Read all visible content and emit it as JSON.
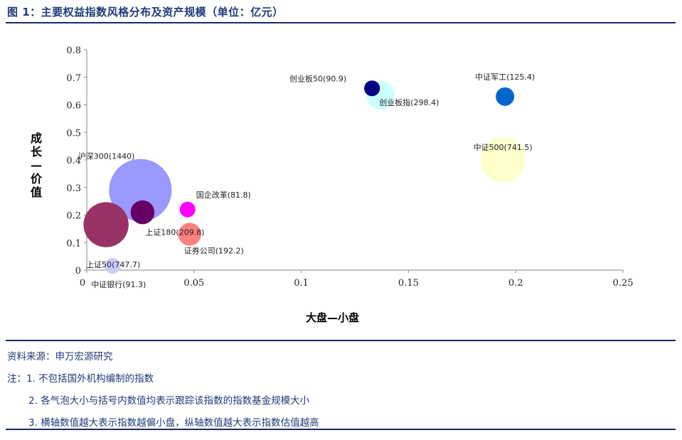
{
  "figure_title": "图 1：主要权益指数风格分布及资产规模（单位：亿元）",
  "source": "资料来源：申万宏源研究",
  "notes": [
    "注：1. 不包括国外机构编制的指数",
    "2. 各气泡大小与括号内数值均表示跟踪该指数的指数基金规模大小",
    "3. 横轴数值越大表示指数越偏小盘，纵轴数值越大表示指数估值越高"
  ],
  "chart_data": {
    "type": "scatter",
    "title": "",
    "xlabel": "大盘—小盘",
    "ylabel": "成长—价值",
    "xlim": [
      0,
      0.25
    ],
    "ylim": [
      0,
      0.8
    ],
    "x_ticks": [
      "0",
      "0.05",
      "0.1",
      "0.15",
      "0.2",
      "0.25"
    ],
    "y_ticks": [
      "0",
      "0.1",
      "0.2",
      "0.3",
      "0.4",
      "0.5",
      "0.6",
      "0.7",
      "0.8"
    ],
    "grid": false,
    "points": [
      {
        "label": "沪深300(1440)",
        "x": 0.025,
        "y": 0.29,
        "size": 1440,
        "color": "#9999ff"
      },
      {
        "label": "中证500(741.5)",
        "x": 0.194,
        "y": 0.4,
        "size": 741.5,
        "color": "#ffffcc"
      },
      {
        "label": "上证50(747.7)",
        "x": 0.009,
        "y": 0.165,
        "size": 747.7,
        "color": "#993366"
      },
      {
        "label": "创业板指(298.4)",
        "x": 0.137,
        "y": 0.635,
        "size": 298.4,
        "color": "#ccffff"
      },
      {
        "label": "上证180(209.8)",
        "x": 0.026,
        "y": 0.21,
        "size": 209.8,
        "color": "#660066"
      },
      {
        "label": "证券公司(192.2)",
        "x": 0.048,
        "y": 0.13,
        "size": 192.2,
        "color": "#ff8080"
      },
      {
        "label": "中证军工(125.4)",
        "x": 0.195,
        "y": 0.63,
        "size": 125.4,
        "color": "#0066cc"
      },
      {
        "label": "中证银行(91.3)",
        "x": 0.012,
        "y": 0.015,
        "size": 91.3,
        "color": "#ccccff"
      },
      {
        "label": "创业板50(90.9)",
        "x": 0.133,
        "y": 0.66,
        "size": 90.9,
        "color": "#000080"
      },
      {
        "label": "国企改革(81.8)",
        "x": 0.047,
        "y": 0.22,
        "size": 81.8,
        "color": "#ff00ff"
      }
    ]
  }
}
